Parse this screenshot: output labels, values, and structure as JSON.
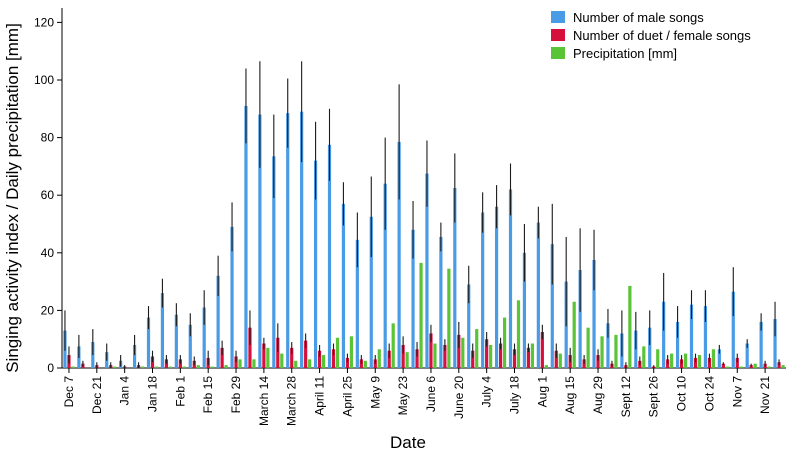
{
  "chart_data": {
    "type": "bar",
    "xlabel": "Date",
    "ylabel": "Singing activity index / Daily precipitation [mm]",
    "ylim": [
      0,
      125
    ],
    "yticks": [
      0,
      20,
      40,
      60,
      80,
      100,
      120
    ],
    "grid": false,
    "legend_position": "top-right",
    "x_tick_labels": [
      "Dec 7",
      "Dec 21",
      "Jan 4",
      "Jan 18",
      "Feb 1",
      "Feb 15",
      "Feb 29",
      "March 14",
      "March 28",
      "April 11",
      "April 25",
      "May 9",
      "May 23",
      "June 6",
      "June 20",
      "July 4",
      "July 18",
      "Aug 1",
      "Aug 15",
      "Aug 29",
      "Sept 12",
      "Sept 26",
      "Oct 10",
      "Oct 24",
      "Nov 7",
      "Nov 21"
    ],
    "series": [
      {
        "name": "Number of male songs",
        "color": "#4a9be6",
        "values": [
          13,
          7.5,
          9,
          5.5,
          2.5,
          8,
          17.5,
          26,
          18.5,
          15,
          21,
          32,
          49,
          91,
          88,
          73.5,
          88.5,
          89,
          72,
          77.5,
          57,
          44.5,
          52.5,
          64,
          78.5,
          48,
          67.5,
          45.5,
          62.5,
          29,
          54,
          56,
          62,
          40,
          50.5,
          43,
          30,
          34,
          37.5,
          15.5,
          12,
          13,
          14,
          23,
          16,
          22,
          21.5,
          6.5,
          26.5,
          8.5,
          16,
          17
        ],
        "errors": [
          7,
          4,
          4.5,
          3,
          2,
          3.5,
          4,
          5,
          4,
          4,
          6,
          7,
          8.5,
          13,
          18.5,
          14.5,
          12,
          17.5,
          13.5,
          12.5,
          7.5,
          9.5,
          14,
          16,
          20,
          10,
          11.5,
          5,
          12,
          6.5,
          7,
          7.5,
          9,
          10,
          5.5,
          14,
          15.5,
          14.5,
          10.5,
          5,
          8,
          6.5,
          6,
          10,
          5.5,
          5,
          5.5,
          1.5,
          8.5,
          1.5,
          3,
          6
        ]
      },
      {
        "name": "Number of duet / female songs",
        "color": "#d6103c",
        "values": [
          4.5,
          1.5,
          1,
          1,
          0.5,
          1,
          4,
          3,
          3,
          2.5,
          3.5,
          7,
          4,
          14,
          8.5,
          10.5,
          7,
          9.5,
          6,
          6.5,
          3.5,
          3,
          3,
          6,
          8,
          6.5,
          12,
          8,
          11.5,
          6,
          10,
          8.5,
          6.5,
          7,
          12.5,
          6,
          4.5,
          3,
          4.5,
          1.5,
          1,
          2.5,
          0.5,
          3,
          3,
          3.5,
          3.5,
          1.5,
          3.5,
          1,
          1.5,
          2
        ],
        "errors": [
          3,
          1,
          1,
          1,
          0.5,
          1,
          2,
          1.5,
          1.5,
          1.5,
          2.5,
          2.5,
          2,
          6,
          2,
          5,
          2,
          2.5,
          2,
          2,
          1.5,
          1.5,
          1.5,
          2.5,
          3,
          2.5,
          3,
          2,
          4.5,
          2.5,
          2.5,
          2,
          2,
          1.5,
          2.5,
          2.5,
          2.5,
          1.5,
          2,
          1,
          1,
          1.5,
          0.5,
          1.5,
          1.5,
          1.5,
          1.5,
          0.5,
          1.5,
          0.5,
          1,
          1
        ]
      },
      {
        "name": "Precipitation [mm]",
        "color": "#58c436",
        "values": [
          0.5,
          0,
          0,
          0.5,
          0,
          0.5,
          0.5,
          0.5,
          0.5,
          1,
          0.5,
          1,
          3,
          3,
          7,
          5,
          2.5,
          3,
          4.5,
          10.5,
          11,
          2.5,
          6.5,
          15.5,
          5.5,
          36.5,
          8.5,
          34.5,
          10.5,
          13.5,
          8,
          17.5,
          23.5,
          8.5,
          1,
          5,
          23,
          14,
          11,
          11.5,
          28.5,
          7.5,
          6.5,
          5,
          5,
          4.5,
          6.5,
          0.5,
          0.5,
          1.5,
          0.5,
          1
        ]
      }
    ]
  }
}
